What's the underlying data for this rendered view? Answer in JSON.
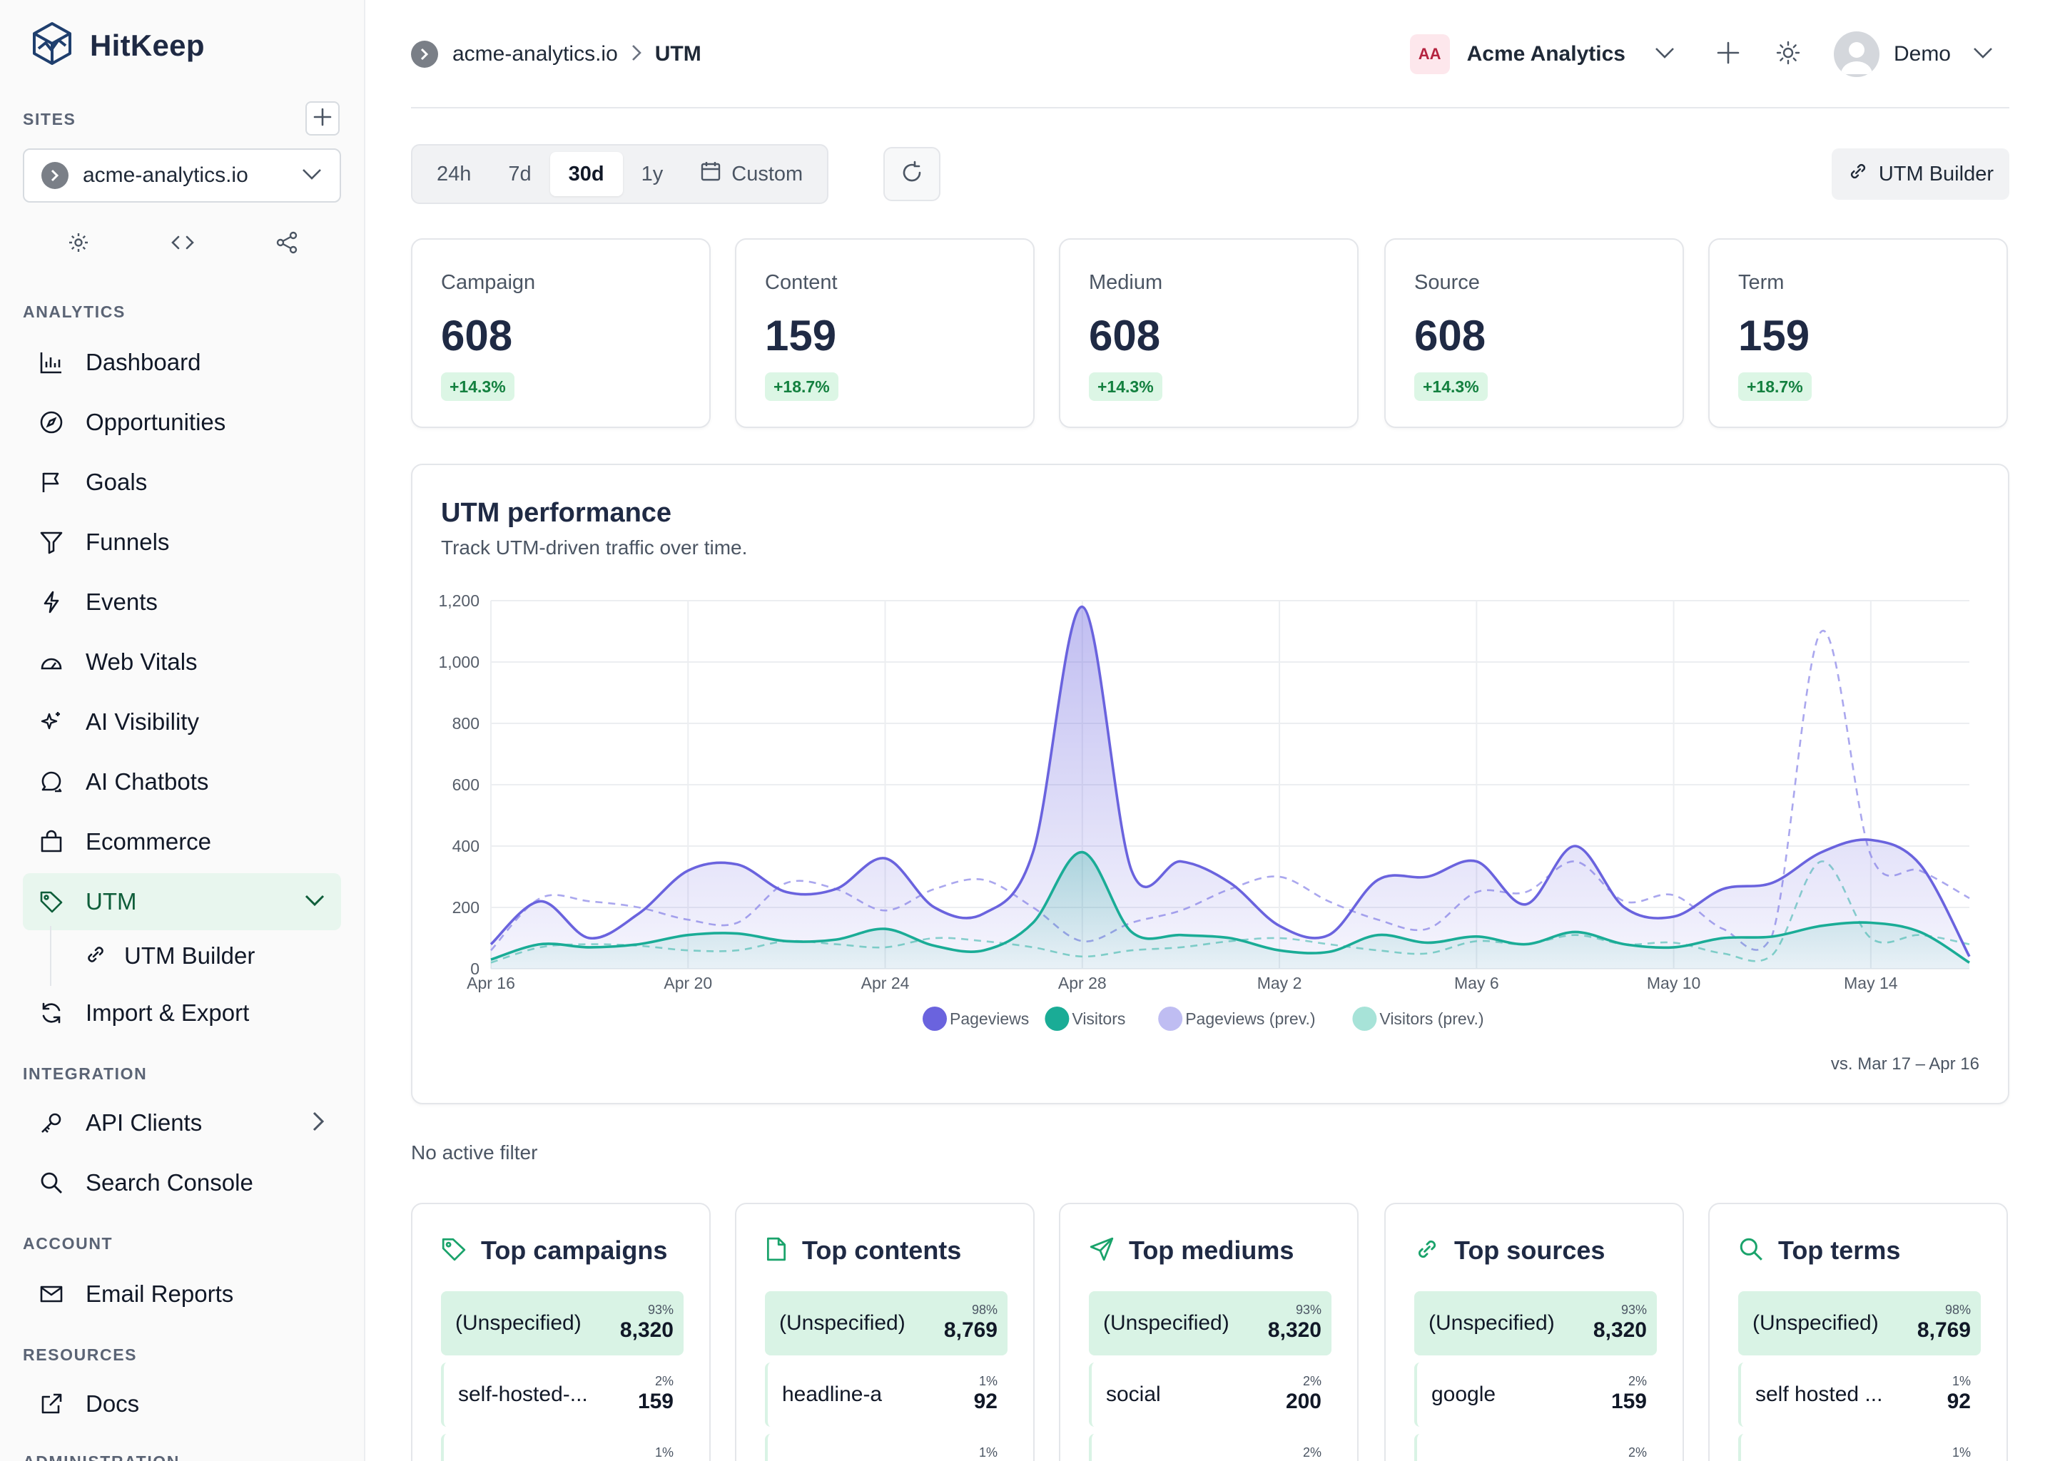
{
  "brand": {
    "name": "HitKeep"
  },
  "sidebar": {
    "sites_label": "SITES",
    "site_selected": "acme-analytics.io",
    "analytics_label": "ANALYTICS",
    "analytics_items": [
      {
        "label": "Dashboard",
        "icon": "bar-chart-icon"
      },
      {
        "label": "Opportunities",
        "icon": "compass-icon"
      },
      {
        "label": "Goals",
        "icon": "flag-icon"
      },
      {
        "label": "Funnels",
        "icon": "funnel-icon"
      },
      {
        "label": "Events",
        "icon": "lightning-icon"
      },
      {
        "label": "Web Vitals",
        "icon": "gauge-icon"
      },
      {
        "label": "AI Visibility",
        "icon": "sparkle-icon"
      },
      {
        "label": "AI Chatbots",
        "icon": "chat-icon"
      },
      {
        "label": "Ecommerce",
        "icon": "shopping-bag-icon"
      },
      {
        "label": "UTM",
        "icon": "tag-icon"
      }
    ],
    "utm_sub": {
      "label": "UTM Builder",
      "icon": "link-icon"
    },
    "import_export": {
      "label": "Import & Export",
      "icon": "sync-icon"
    },
    "integration_label": "INTEGRATION",
    "integration_items": [
      {
        "label": "API Clients",
        "icon": "key-icon"
      },
      {
        "label": "Search Console",
        "icon": "search-icon"
      }
    ],
    "account_label": "ACCOUNT",
    "account_items": [
      {
        "label": "Email Reports",
        "icon": "mail-icon"
      }
    ],
    "resources_label": "RESOURCES",
    "resources_items": [
      {
        "label": "Docs",
        "icon": "external-link-icon"
      }
    ],
    "administration_label": "ADMINISTRATION"
  },
  "header": {
    "breadcrumb_site": "acme-analytics.io",
    "breadcrumb_page": "UTM",
    "org_initials": "AA",
    "org_name": "Acme Analytics",
    "user_name": "Demo"
  },
  "toolbar": {
    "ranges": [
      "24h",
      "7d",
      "30d",
      "1y"
    ],
    "selected_range": "30d",
    "custom_label": "Custom",
    "utm_builder_label": "UTM Builder"
  },
  "stats": [
    {
      "title": "Campaign",
      "value": "608",
      "delta": "+14.3%"
    },
    {
      "title": "Content",
      "value": "159",
      "delta": "+18.7%"
    },
    {
      "title": "Medium",
      "value": "608",
      "delta": "+14.3%"
    },
    {
      "title": "Source",
      "value": "608",
      "delta": "+14.3%"
    },
    {
      "title": "Term",
      "value": "159",
      "delta": "+18.7%"
    }
  ],
  "chart": {
    "title": "UTM performance",
    "subtitle": "Track UTM-driven traffic over time.",
    "comparison": "vs. Mar 17 – Apr 16"
  },
  "chart_data": {
    "type": "area",
    "x": [
      "Apr 16",
      "Apr 17",
      "Apr 18",
      "Apr 19",
      "Apr 20",
      "Apr 21",
      "Apr 22",
      "Apr 23",
      "Apr 24",
      "Apr 25",
      "Apr 26",
      "Apr 27",
      "Apr 28",
      "Apr 29",
      "Apr 30",
      "May 1",
      "May 2",
      "May 3",
      "May 4",
      "May 5",
      "May 6",
      "May 7",
      "May 8",
      "May 9",
      "May 10",
      "May 11",
      "May 12",
      "May 13",
      "May 14",
      "May 15",
      "May 16"
    ],
    "x_tick_labels": [
      "Apr 16",
      "Apr 20",
      "Apr 24",
      "Apr 28",
      "May 2",
      "May 6",
      "May 10",
      "May 14"
    ],
    "ylim": [
      0,
      1200
    ],
    "y_ticks": [
      0,
      200,
      400,
      600,
      800,
      1000,
      1200
    ],
    "grid": true,
    "legend_position": "bottom",
    "series": [
      {
        "name": "Pageviews",
        "color": "#6a63de",
        "style": "solid",
        "fill": true,
        "values": [
          80,
          220,
          100,
          180,
          320,
          340,
          250,
          260,
          360,
          200,
          180,
          380,
          1180,
          320,
          350,
          280,
          140,
          110,
          290,
          300,
          350,
          210,
          400,
          200,
          170,
          260,
          280,
          380,
          420,
          340,
          40
        ]
      },
      {
        "name": "Visitors",
        "color": "#1aac96",
        "style": "solid",
        "fill": true,
        "values": [
          30,
          80,
          70,
          80,
          110,
          115,
          90,
          95,
          130,
          75,
          60,
          150,
          380,
          120,
          110,
          100,
          60,
          55,
          110,
          85,
          105,
          80,
          120,
          80,
          70,
          100,
          105,
          140,
          150,
          120,
          20
        ]
      },
      {
        "name": "Pageviews (prev.)",
        "color": "#aaa7ee",
        "style": "dashed",
        "fill": false,
        "values": [
          60,
          230,
          220,
          200,
          160,
          150,
          280,
          260,
          190,
          260,
          290,
          200,
          90,
          150,
          190,
          260,
          300,
          220,
          160,
          130,
          250,
          250,
          350,
          220,
          240,
          130,
          110,
          1100,
          370,
          320,
          230
        ]
      },
      {
        "name": "Visitors (prev.)",
        "color": "#8ad9cb",
        "style": "dashed",
        "fill": false,
        "values": [
          20,
          70,
          80,
          75,
          60,
          60,
          90,
          80,
          70,
          100,
          90,
          70,
          40,
          60,
          70,
          90,
          100,
          80,
          60,
          50,
          90,
          80,
          110,
          80,
          85,
          50,
          45,
          350,
          100,
          110,
          80
        ]
      }
    ]
  },
  "filter_status": "No active filter",
  "top_lists": [
    {
      "title": "Top campaigns",
      "icon": "tag-icon",
      "rows": [
        {
          "name": "(Unspecified)",
          "pct": "93%",
          "count": "8,320"
        },
        {
          "name": "self-hosted-...",
          "pct": "2%",
          "count": "159"
        },
        {
          "name": "",
          "pct": "1%",
          "count": ""
        }
      ]
    },
    {
      "title": "Top contents",
      "icon": "file-icon",
      "rows": [
        {
          "name": "(Unspecified)",
          "pct": "98%",
          "count": "8,769"
        },
        {
          "name": "headline-a",
          "pct": "1%",
          "count": "92"
        },
        {
          "name": "",
          "pct": "1%",
          "count": ""
        }
      ]
    },
    {
      "title": "Top mediums",
      "icon": "send-icon",
      "rows": [
        {
          "name": "(Unspecified)",
          "pct": "93%",
          "count": "8,320"
        },
        {
          "name": "social",
          "pct": "2%",
          "count": "200"
        },
        {
          "name": "",
          "pct": "2%",
          "count": ""
        }
      ]
    },
    {
      "title": "Top sources",
      "icon": "link-icon",
      "rows": [
        {
          "name": "(Unspecified)",
          "pct": "93%",
          "count": "8,320"
        },
        {
          "name": "google",
          "pct": "2%",
          "count": "159"
        },
        {
          "name": "",
          "pct": "2%",
          "count": ""
        }
      ]
    },
    {
      "title": "Top terms",
      "icon": "search-icon",
      "rows": [
        {
          "name": "(Unspecified)",
          "pct": "98%",
          "count": "8,769"
        },
        {
          "name": "self hosted ...",
          "pct": "1%",
          "count": "92"
        },
        {
          "name": "",
          "pct": "1%",
          "count": ""
        }
      ]
    }
  ]
}
